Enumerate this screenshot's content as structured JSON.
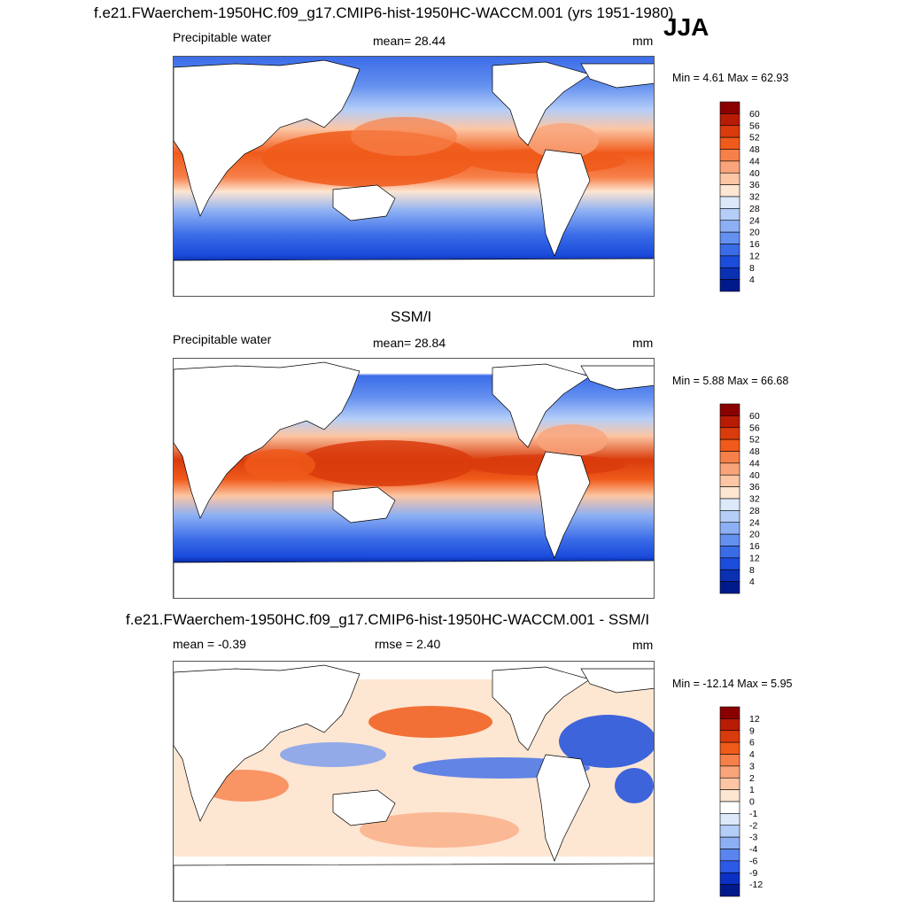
{
  "figure": {
    "title": "f.e21.FWaerchem-1950HC.f09_g17.CMIP6-hist-1950HC-WACCM.001 (yrs 1951-1980)",
    "season": "JJA"
  },
  "panels": [
    {
      "id": "model",
      "panel_title": "",
      "left_text": "Precipitable water",
      "center_text": "mean=  28.44",
      "units": "mm",
      "minmax_text": "Min =   4.61 Max =  62.93",
      "colorbar": {
        "labels": [
          "60",
          "56",
          "52",
          "48",
          "44",
          "40",
          "36",
          "32",
          "28",
          "24",
          "20",
          "16",
          "12",
          "8",
          "4"
        ],
        "colors": [
          "#8b0000",
          "#b81c05",
          "#d93b0c",
          "#f05a1a",
          "#f7804a",
          "#f9a47a",
          "#fcc6a4",
          "#fde6d2",
          "#dce9fb",
          "#b5cef8",
          "#8db0f4",
          "#6490ef",
          "#3b6ce8",
          "#1b4cdc",
          "#0a30b4",
          "#001a8c"
        ]
      }
    },
    {
      "id": "obs",
      "panel_title": "SSM/I",
      "left_text": "Precipitable water",
      "center_text": "mean=  28.84",
      "units": "mm",
      "minmax_text": "Min =   5.88 Max =  66.68",
      "colorbar": {
        "labels": [
          "60",
          "56",
          "52",
          "48",
          "44",
          "40",
          "36",
          "32",
          "28",
          "24",
          "20",
          "16",
          "12",
          "8",
          "4"
        ],
        "colors": [
          "#8b0000",
          "#b81c05",
          "#d93b0c",
          "#f05a1a",
          "#f7804a",
          "#f9a47a",
          "#fcc6a4",
          "#fde6d2",
          "#dce9fb",
          "#b5cef8",
          "#8db0f4",
          "#6490ef",
          "#3b6ce8",
          "#1b4cdc",
          "#0a30b4",
          "#001a8c"
        ]
      }
    },
    {
      "id": "diff",
      "panel_title": "f.e21.FWaerchem-1950HC.f09_g17.CMIP6-hist-1950HC-WACCM.001 - SSM/I",
      "left_text": "mean =  -0.39",
      "center_text": "rmse =   2.40",
      "units": "mm",
      "minmax_text": "Min = -12.14 Max =   5.95",
      "colorbar": {
        "labels": [
          "12",
          "9",
          "6",
          "4",
          "3",
          "2",
          "1",
          "0",
          "-1",
          "-2",
          "-3",
          "-4",
          "-6",
          "-9",
          "-12"
        ],
        "colors": [
          "#8b0000",
          "#b81c05",
          "#d93b0c",
          "#f05a1a",
          "#f7804a",
          "#f9a47a",
          "#fcc6a4",
          "#fde6d2",
          "#ffffff",
          "#dce9fb",
          "#b5cef8",
          "#8db0f4",
          "#5a84ee",
          "#2c5ae6",
          "#0a30c4",
          "#001a8c"
        ]
      }
    }
  ]
}
